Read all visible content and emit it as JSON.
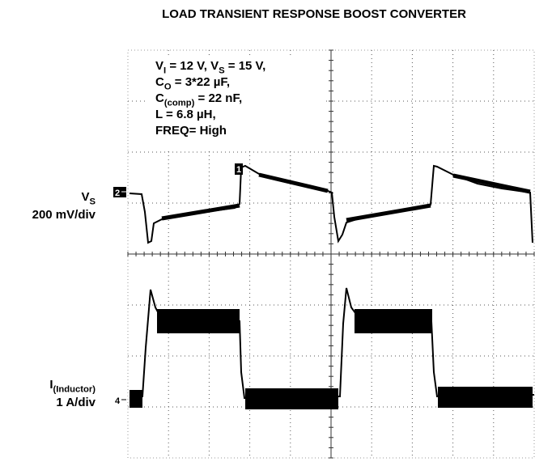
{
  "title": "LOAD TRANSIENT RESPONSE BOOST CONVERTER",
  "conditions": [
    [
      "V",
      "I",
      " = 12 V, V",
      "S",
      " = 15 V,"
    ],
    [
      "C",
      "O",
      " = 3*22 µF,"
    ],
    [
      "C",
      "(comp)",
      " = 22 nF,"
    ],
    [
      "L = 6.8 µH,"
    ],
    [
      "FREQ= High"
    ]
  ],
  "channels": [
    {
      "label": [
        "V",
        "S"
      ],
      "scale": "200 mV/div",
      "marker": "2"
    },
    {
      "label": [
        "I",
        "(Inductor)"
      ],
      "scale": "1 A/div",
      "marker": "4"
    }
  ],
  "trigger_marker": "1"
}
